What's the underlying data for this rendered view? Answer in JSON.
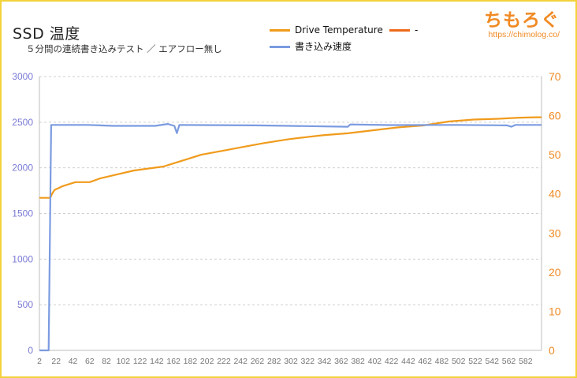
{
  "brand": {
    "logo_text": "ちもろぐ",
    "url": "https://chimolog.co/"
  },
  "chart_data": {
    "type": "line",
    "title": "SSD 温度",
    "subtitle": "５分間の連続書き込みテスト ／ エアフロー無し",
    "xlabel": "",
    "ylabel_left": "",
    "ylabel_right": "",
    "x_range": [
      2,
      601
    ],
    "x_ticks": [
      2,
      22,
      42,
      62,
      82,
      102,
      122,
      142,
      162,
      182,
      202,
      222,
      242,
      262,
      282,
      302,
      322,
      342,
      362,
      382,
      402,
      422,
      442,
      462,
      482,
      502,
      522,
      542,
      562,
      582
    ],
    "y_left": {
      "range": [
        0,
        3000
      ],
      "ticks": [
        0,
        500,
        1000,
        1500,
        2000,
        2500,
        3000
      ]
    },
    "y_right": {
      "range": [
        0,
        70
      ],
      "ticks": [
        0,
        10,
        20,
        30,
        40,
        50,
        60,
        70
      ]
    },
    "grid": "horizontal-dashed",
    "legend_position": "top-center",
    "series": [
      {
        "name": "Drive Temperature",
        "axis": "right",
        "color": "#f09b1c",
        "points": [
          [
            2,
            39
          ],
          [
            15,
            39
          ],
          [
            17,
            40
          ],
          [
            20,
            41
          ],
          [
            30,
            42
          ],
          [
            45,
            43
          ],
          [
            62,
            43
          ],
          [
            75,
            44
          ],
          [
            95,
            45
          ],
          [
            115,
            46
          ],
          [
            150,
            47
          ],
          [
            165,
            48
          ],
          [
            180,
            49
          ],
          [
            195,
            50
          ],
          [
            220,
            51
          ],
          [
            245,
            52
          ],
          [
            270,
            53
          ],
          [
            300,
            54
          ],
          [
            320,
            54.5
          ],
          [
            340,
            55
          ],
          [
            370,
            55.5
          ],
          [
            390,
            56
          ],
          [
            410,
            56.5
          ],
          [
            430,
            57
          ],
          [
            460,
            57.5
          ],
          [
            490,
            58.5
          ],
          [
            520,
            59
          ],
          [
            550,
            59.2
          ],
          [
            575,
            59.5
          ],
          [
            595,
            59.6
          ],
          [
            601,
            59.6
          ]
        ]
      },
      {
        "name": "-",
        "axis": "right",
        "color": "#ee6a1a",
        "points": []
      },
      {
        "name": "書き込み速度",
        "axis": "left",
        "color": "#7b9be0",
        "points": [
          [
            2,
            0
          ],
          [
            13,
            0
          ],
          [
            16,
            2470
          ],
          [
            60,
            2470
          ],
          [
            90,
            2460
          ],
          [
            140,
            2460
          ],
          [
            155,
            2480
          ],
          [
            163,
            2460
          ],
          [
            166,
            2380
          ],
          [
            169,
            2470
          ],
          [
            260,
            2465
          ],
          [
            300,
            2460
          ],
          [
            370,
            2450
          ],
          [
            373,
            2475
          ],
          [
            420,
            2468
          ],
          [
            500,
            2470
          ],
          [
            560,
            2465
          ],
          [
            565,
            2450
          ],
          [
            570,
            2470
          ],
          [
            601,
            2470
          ]
        ]
      }
    ]
  }
}
